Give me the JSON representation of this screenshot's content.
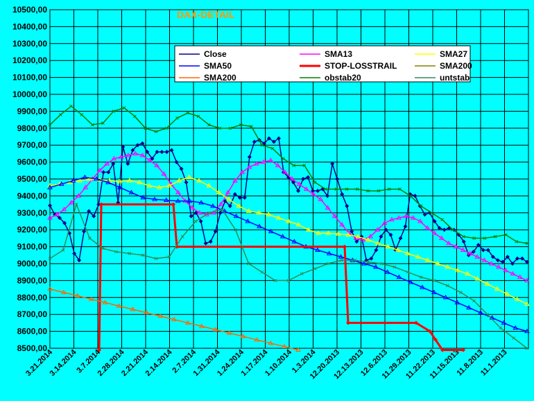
{
  "chart_data": {
    "type": "line",
    "title": "DAX-DETAIL",
    "xlabel": "",
    "ylabel": "",
    "ylim": [
      8500,
      10500
    ],
    "yticks": [
      "10500,00",
      "10400,00",
      "10300,00",
      "10200,00",
      "10100,00",
      "10000,00",
      "9900,00",
      "9800,00",
      "9700,00",
      "9600,00",
      "9500,00",
      "9400,00",
      "9300,00",
      "9200,00",
      "9100,00",
      "9000,00",
      "8900,00",
      "8800,00",
      "8700,00",
      "8600,00",
      "8500,00"
    ],
    "x_tick_labels": [
      "3.21.2014",
      "3.14.2014",
      "3.7.2014",
      "2.28.2014",
      "2.21.2014",
      "2.14.2014",
      "2.7.2014",
      "1.31.2014",
      "1.24.2014",
      "1.17.2014",
      "1.10.2014",
      "1.3.2014",
      "12.20.2013",
      "12.13.2013",
      "12.6.2013",
      "11.29.2013",
      "11.22.2013",
      "11.15.2013",
      "11.8.2013",
      "11.1.2013"
    ],
    "grid": true,
    "legend_position": "top-right",
    "colors": {
      "background": "#00ffff",
      "grid": "#000000",
      "legend_bg": "#ffffff",
      "title": "#ff9900"
    },
    "series": [
      {
        "name": "Close",
        "color": "#00008b",
        "marker": "diamond",
        "values": [
          9343,
          9290,
          9270,
          9240,
          9180,
          9060,
          9020,
          9190,
          9310,
          9280,
          9350,
          9540,
          9540,
          9590,
          9360,
          9690,
          9590,
          9670,
          9700,
          9710,
          9660,
          9620,
          9660,
          9660,
          9660,
          9670,
          9600,
          9560,
          9480,
          9280,
          9300,
          9250,
          9120,
          9130,
          9190,
          9300,
          9370,
          9340,
          9410,
          9390,
          9390,
          9630,
          9720,
          9730,
          9710,
          9740,
          9720,
          9740,
          9540,
          9510,
          9480,
          9430,
          9500,
          9510,
          9430,
          9430,
          9440,
          9400,
          9590,
          9500,
          9410,
          9340,
          9190,
          9130,
          9160,
          9020,
          9030,
          9080,
          9160,
          9200,
          9170,
          9080,
          9150,
          9220,
          9410,
          9400,
          9340,
          9290,
          9300,
          9250,
          9210,
          9200,
          9210,
          9200,
          9170,
          9130,
          9050,
          9070,
          9110,
          9080,
          9080,
          9040,
          9020,
          9010,
          9040,
          9000,
          9030,
          9030,
          9010
        ]
      },
      {
        "name": "SMA13",
        "color": "#ff00ff",
        "marker": "triangle",
        "values": [
          9270,
          9290,
          9320,
          9360,
          9400,
          9450,
          9500,
          9550,
          9590,
          9620,
          9630,
          9640,
          9650,
          9640,
          9610,
          9580,
          9530,
          9470,
          9420,
          9370,
          9330,
          9300,
          9290,
          9300,
          9350,
          9420,
          9490,
          9540,
          9570,
          9590,
          9600,
          9610,
          9580,
          9540,
          9500,
          9470,
          9440,
          9410,
          9380,
          9330,
          9280,
          9230,
          9180,
          9150,
          9140,
          9160,
          9200,
          9240,
          9260,
          9270,
          9280,
          9270,
          9250,
          9210,
          9180,
          9150,
          9120,
          9100,
          9080,
          9060,
          9040,
          9020,
          9000,
          8980,
          8960,
          8940,
          8920,
          8900
        ]
      },
      {
        "name": "SMA27",
        "color": "#ffff00",
        "marker": "triangle",
        "values": [
          9460,
          9470,
          9480,
          9490,
          9500,
          9495,
          9490,
          9485,
          9490,
          9480,
          9460,
          9450,
          9460,
          9490,
          9510,
          9490,
          9460,
          9420,
          9380,
          9340,
          9310,
          9300,
          9290,
          9270,
          9250,
          9230,
          9200,
          9180,
          9180,
          9175,
          9170,
          9160,
          9140,
          9120,
          9100,
          9080,
          9060,
          9040,
          9020,
          9000,
          8980,
          8960,
          8940,
          8910,
          8880,
          8850,
          8820,
          8790,
          8760
        ]
      },
      {
        "name": "SMA50",
        "color": "#0000ff",
        "marker": "triangle",
        "values": [
          9450,
          9470,
          9490,
          9510,
          9500,
          9480,
          9450,
          9420,
          9390,
          9380,
          9375,
          9370,
          9370,
          9360,
          9340,
          9310,
          9280,
          9250,
          9220,
          9190,
          9160,
          9130,
          9100,
          9080,
          9060,
          9040,
          9020,
          9000,
          8980,
          8950,
          8920,
          8890,
          8860,
          8830,
          8800,
          8770,
          8740,
          8710,
          8680,
          8650,
          8620,
          8600
        ]
      },
      {
        "name": "STOP-LOSSTRAIL",
        "color": "#ff0000",
        "marker": "diamond",
        "values": [
          8490,
          9350,
          9350,
          9350,
          9350,
          9350,
          9100,
          9100,
          9100,
          9100,
          9100,
          9100,
          9100,
          9100,
          8650,
          8650,
          8650,
          8650,
          8650,
          8650,
          8600,
          8550,
          8490,
          8490
        ]
      },
      {
        "name": "SMA200",
        "color": "#808000",
        "marker": "triangle",
        "values": []
      },
      {
        "name": "SMA200",
        "color": "#ff6600",
        "marker": "triangle",
        "values": [
          8850,
          8830,
          8810,
          8790,
          8770,
          8750,
          8730,
          8710,
          8690,
          8670,
          8650,
          8630,
          8610,
          8590,
          8570,
          8550,
          8530,
          8510,
          8490
        ]
      },
      {
        "name": "obstab20",
        "color": "#008000",
        "marker": "x",
        "values": [
          9820,
          9880,
          9930,
          9880,
          9820,
          9830,
          9900,
          9920,
          9870,
          9800,
          9780,
          9800,
          9860,
          9890,
          9870,
          9820,
          9800,
          9800,
          9820,
          9810,
          9700,
          9680,
          9620,
          9580,
          9580,
          9480,
          9440,
          9440,
          9440,
          9440,
          9430,
          9430,
          9440,
          9440,
          9400,
          9340,
          9300,
          9260,
          9200,
          9160,
          9150,
          9150,
          9160,
          9170,
          9130,
          9120
        ]
      },
      {
        "name": "untstab",
        "color": "#2e8b57",
        "marker": "x",
        "values": [
          9030,
          9080,
          9350,
          9150,
          9090,
          9070,
          9060,
          9050,
          9030,
          9040,
          9160,
          9250,
          9300,
          9320,
          9200,
          9000,
          8950,
          8900,
          8900,
          8940,
          8970,
          9000,
          9020,
          9020,
          9010,
          9000,
          8980,
          8950,
          8920,
          8900,
          8870,
          8830,
          8780,
          8700,
          8620,
          8560,
          8500
        ]
      }
    ]
  }
}
